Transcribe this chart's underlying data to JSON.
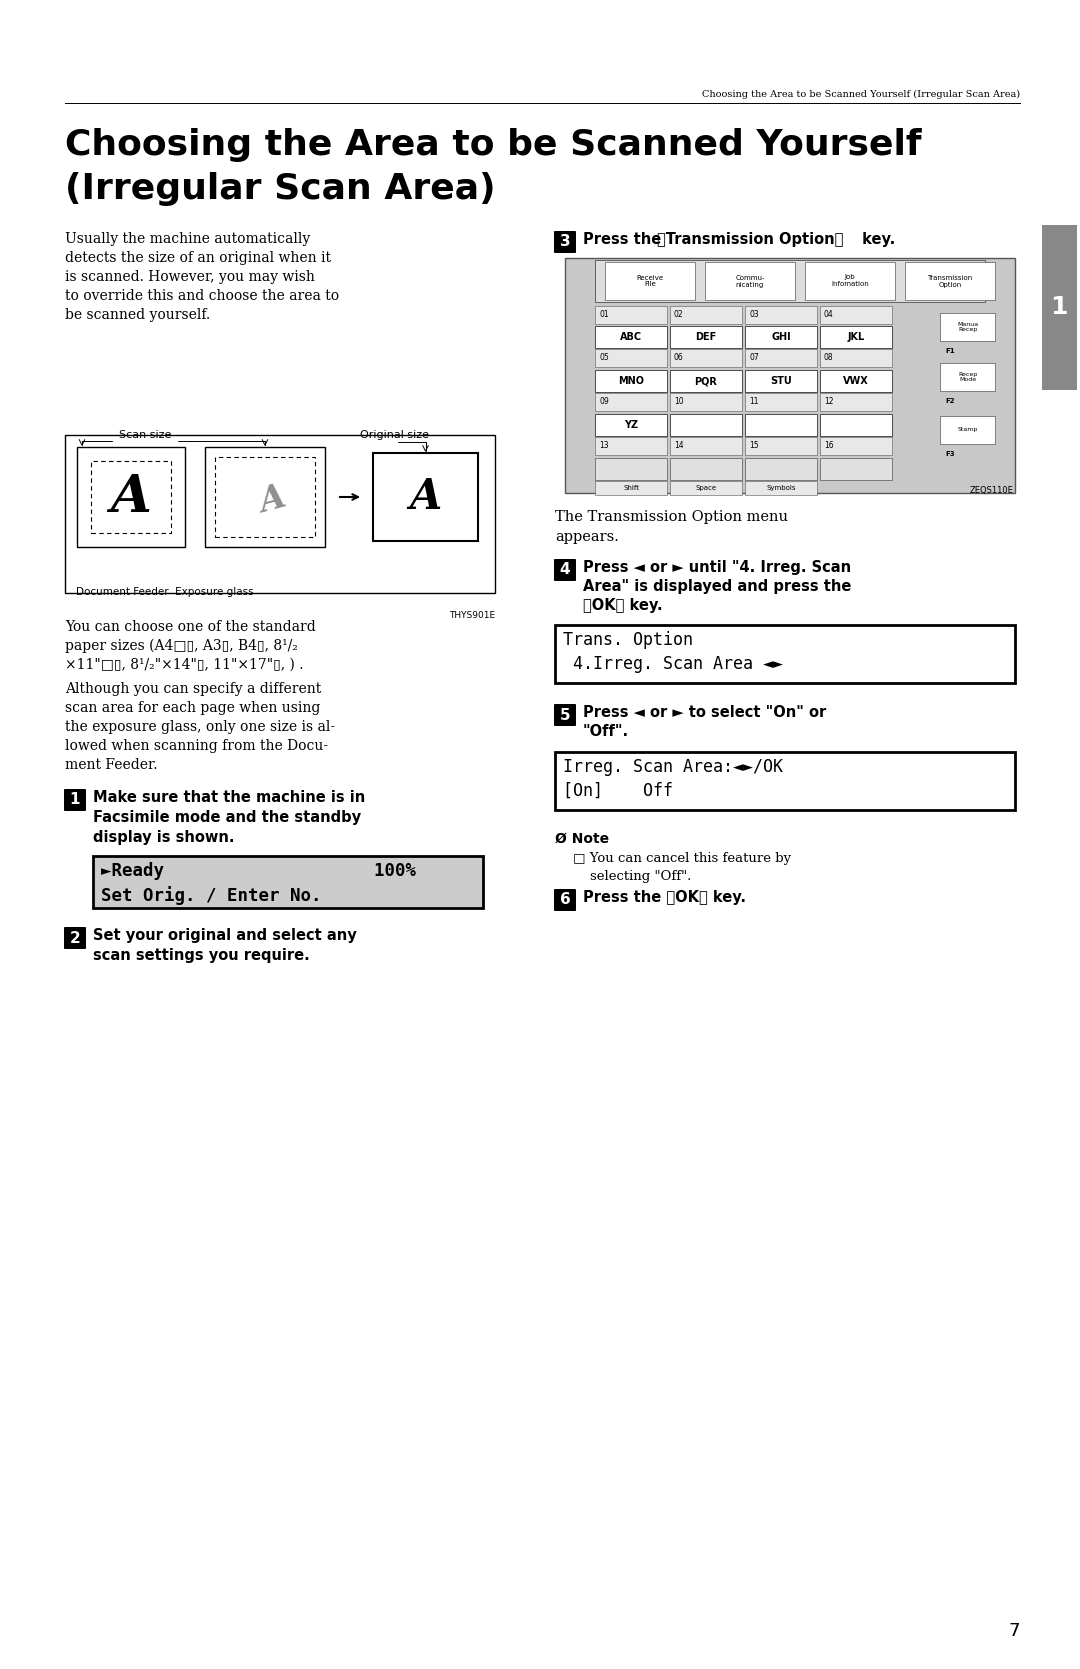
{
  "page_title_header": "Choosing the Area to be Scanned Yourself (Irregular Scan Area)",
  "main_title_line1": "Choosing the Area to be Scanned Yourself",
  "main_title_line2": "(Irregular Scan Area)",
  "body_para1_lines": [
    "Usually the machine automatically",
    "detects the size of an original when it",
    "is scanned. However, you may wish",
    "to override this and choose the area to",
    "be scanned yourself."
  ],
  "body_para2_lines": [
    "You can choose one of the standard",
    "paper sizes (A4□▯, A3▯, B4▯, 8¹/₂",
    "×11\"□▯, 8¹/₂\"×14\"▯, 11\"×17\"▯, ) ."
  ],
  "body_para3_lines": [
    "Although you can specify a different",
    "scan area for each page when using",
    "the exposure glass, only one size is al-",
    "lowed when scanning from the Docu-",
    "ment Feeder."
  ],
  "step1_lines": [
    "Make sure that the machine is in",
    "Facsimile mode and the standby",
    "display is shown."
  ],
  "step1_display_line1": "►Ready                    100%",
  "step1_display_line2": "Set Orig. / Enter No.",
  "step2_lines": [
    "Set your original and select any",
    "scan settings you require."
  ],
  "step3_line": "Press the 【Transmission Option】 key.",
  "step3_note_lines": [
    "The Transmission Option menu",
    "appears."
  ],
  "step4_lines": [
    "Press ◄ or ► until \"4. Irreg. Scan",
    "Area\" is displayed and press the",
    "【OK】 key."
  ],
  "step4_display_line1": "Trans. Option",
  "step4_display_line2": "4.Irreg. Scan Area ◄►",
  "step5_lines": [
    "Press ◄ or ► to select \"On\" or",
    "\"Off\"."
  ],
  "step5_display_line1": "Irreg. Scan Area:◄►/OK",
  "step5_display_line2": "[On]    Off",
  "note_lines": [
    "You can cancel this feature by",
    "selecting \"Off\"."
  ],
  "step6_line": "Press the 【OK】 key.",
  "page_number": "7",
  "fig_label_scan": "Scan size",
  "fig_label_original": "Original size",
  "fig_label_doc": "Document Feeder  Exposure glass",
  "fig_code": "THYS901E",
  "fig_code2": "ZEQS110E",
  "bg_color": "#ffffff"
}
